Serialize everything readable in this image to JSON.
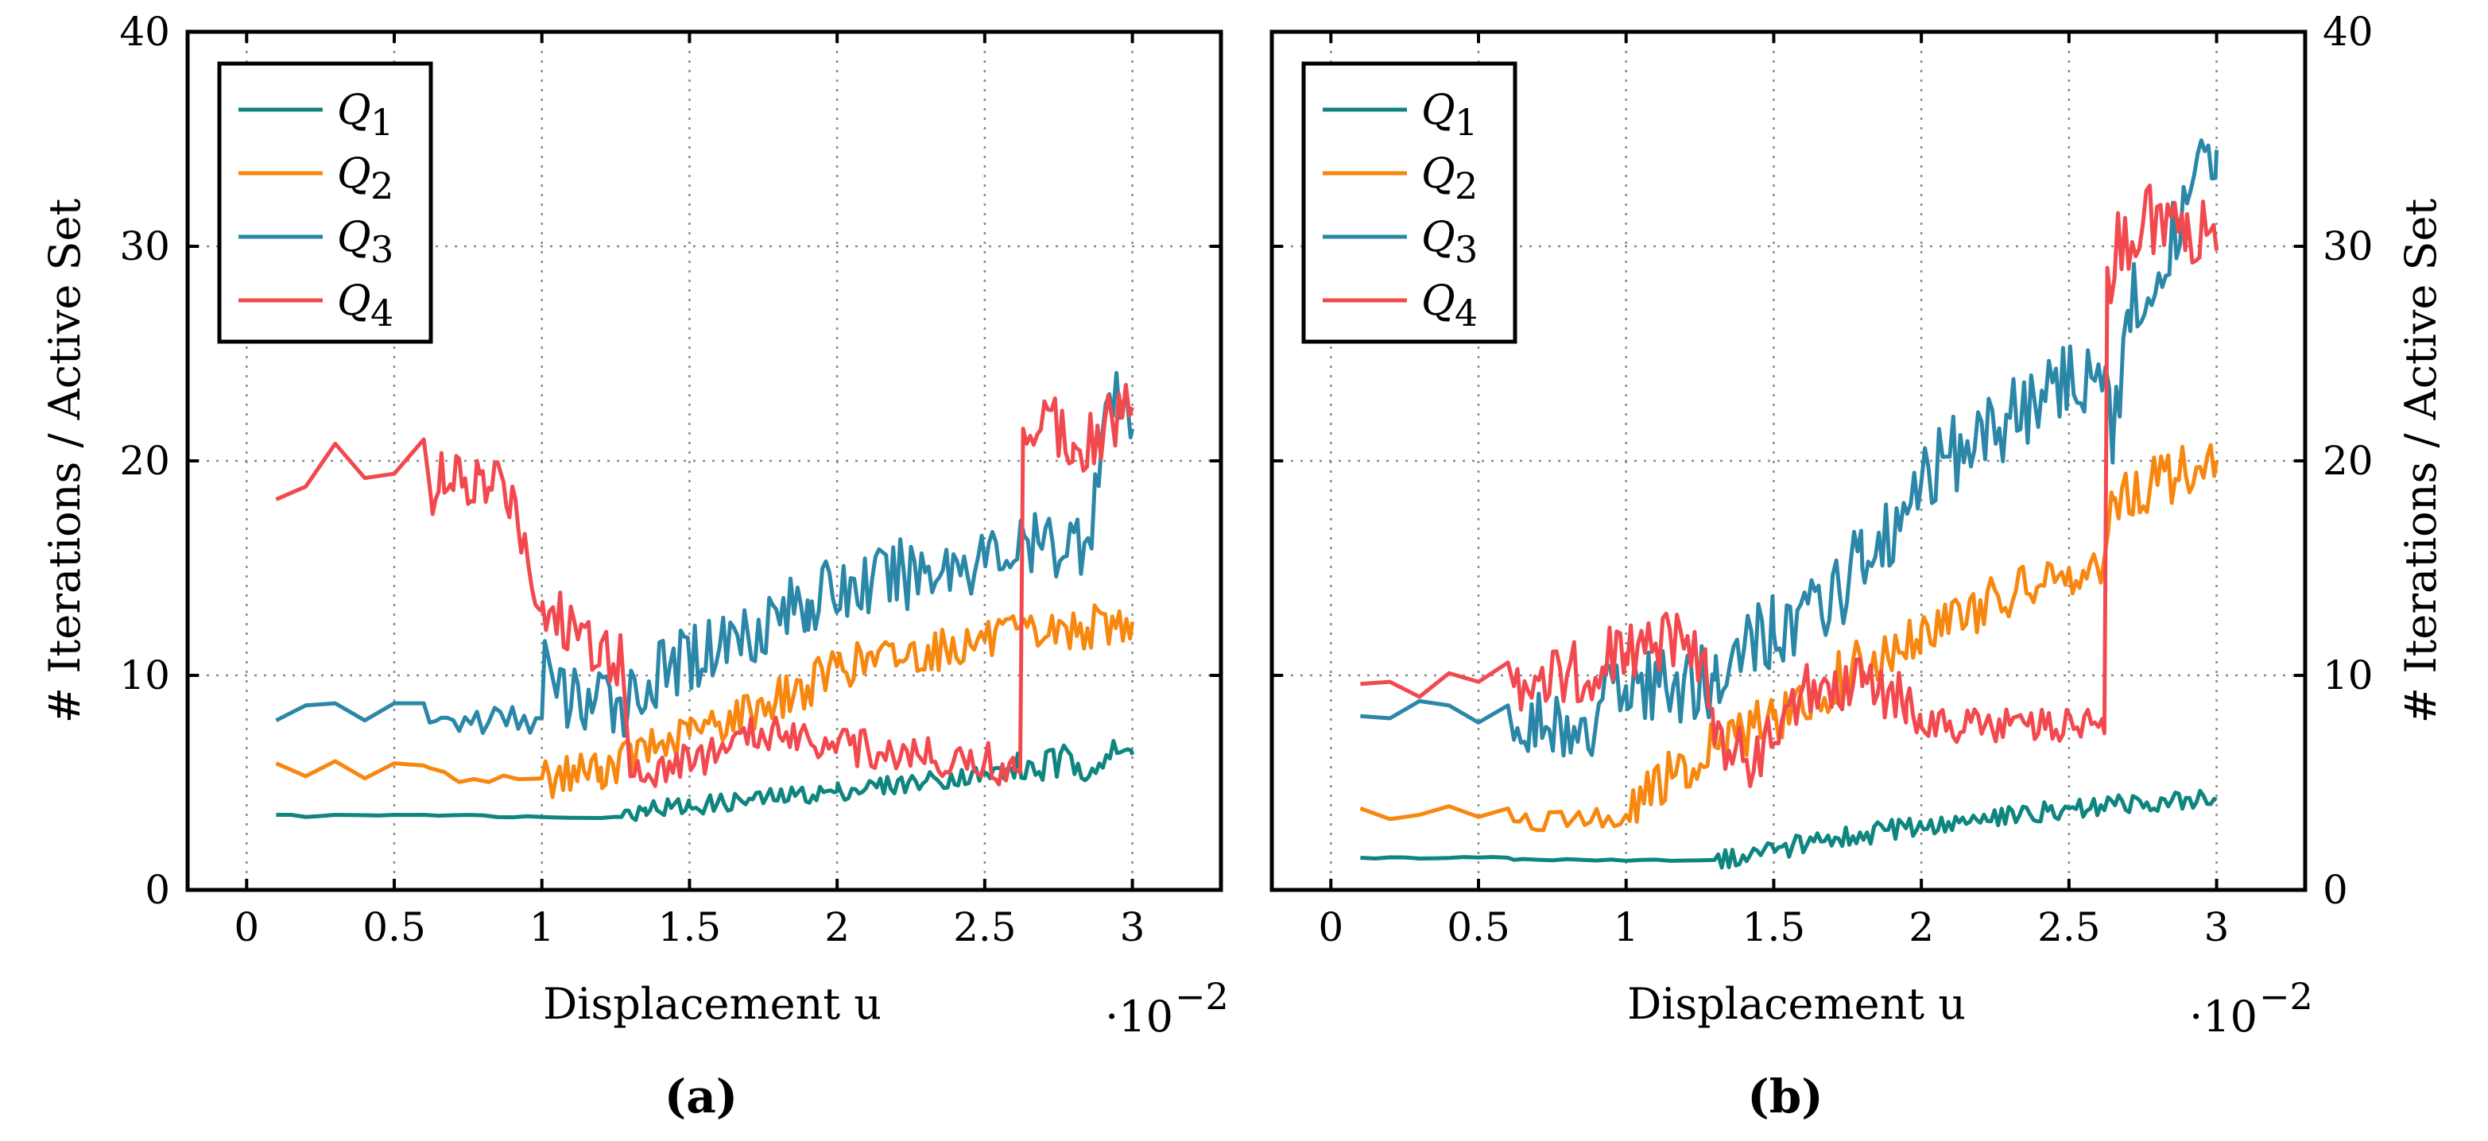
{
  "chart_data": [
    {
      "type": "line",
      "caption": "(a)",
      "xlabel": "Displacement u",
      "x_scale_label": "·10",
      "x_scale_exponent": "−2",
      "ylabel": "# Iterations / Active Set",
      "xlim": [
        -0.2,
        3.3
      ],
      "ylim": [
        0,
        40
      ],
      "xticks": [
        0,
        0.5,
        1,
        1.5,
        2,
        2.5,
        3
      ],
      "xtick_labels": [
        "0",
        "0.5",
        "1",
        "1.5",
        "2",
        "2.5",
        "3"
      ],
      "yticks": [
        0,
        10,
        20,
        30,
        40
      ],
      "ytick_labels": [
        "0",
        "10",
        "20",
        "30",
        "40"
      ],
      "yaxis_side": "left",
      "grid": true,
      "legend_position": "top-left",
      "series": [
        {
          "name": "Q",
          "sub": "1",
          "color": "#0f857f",
          "keypoints": [
            [
              0.1,
              3.5
            ],
            [
              0.2,
              3.4
            ],
            [
              0.3,
              3.5
            ],
            [
              0.5,
              3.5
            ],
            [
              0.6,
              3.5
            ],
            [
              1.0,
              3.4
            ],
            [
              1.27,
              3.4
            ],
            [
              1.35,
              3.8
            ],
            [
              1.5,
              3.9
            ],
            [
              2.0,
              4.6
            ],
            [
              2.5,
              5.4
            ],
            [
              2.62,
              5.6
            ],
            [
              3.0,
              6.3
            ]
          ],
          "noise": [
            {
              "from": 0.1,
              "to": 1.27,
              "step": 0.05,
              "amp": 0.05
            },
            {
              "from": 1.27,
              "to": 2.6,
              "step": 0.012,
              "amp": 0.45
            },
            {
              "from": 2.6,
              "to": 3.0,
              "step": 0.012,
              "amp": 0.9
            }
          ]
        },
        {
          "name": "Q",
          "sub": "2",
          "color": "#f7870f",
          "keypoints": [
            [
              0.1,
              5.9
            ],
            [
              0.2,
              5.3
            ],
            [
              0.3,
              6.0
            ],
            [
              0.4,
              5.2
            ],
            [
              0.5,
              5.9
            ],
            [
              0.6,
              5.8
            ],
            [
              0.7,
              5.2
            ],
            [
              1.0,
              5.2
            ],
            [
              1.2,
              5.7
            ],
            [
              1.5,
              7.2
            ],
            [
              1.9,
              9.5
            ],
            [
              2.0,
              10.4
            ],
            [
              2.5,
              11.6
            ],
            [
              3.0,
              12.5
            ]
          ],
          "noise": [
            {
              "from": 0.1,
              "to": 0.62,
              "step": 0.1,
              "amp": 0
            },
            {
              "from": 0.62,
              "to": 1.0,
              "step": 0.05,
              "amp": 0.2
            },
            {
              "from": 1.0,
              "to": 3.0,
              "step": 0.012,
              "amp": 1.0
            }
          ]
        },
        {
          "name": "Q",
          "sub": "3",
          "color": "#2b87a8",
          "keypoints": [
            [
              0.1,
              7.9
            ],
            [
              0.2,
              8.6
            ],
            [
              0.3,
              8.7
            ],
            [
              0.4,
              7.9
            ],
            [
              0.5,
              8.7
            ],
            [
              0.6,
              8.7
            ],
            [
              0.62,
              7.8
            ],
            [
              1.0,
              8.0
            ],
            [
              1.01,
              11.6
            ],
            [
              1.05,
              9.0
            ],
            [
              1.25,
              8.6
            ],
            [
              1.5,
              10.8
            ],
            [
              1.9,
              13.5
            ],
            [
              2.3,
              15.0
            ],
            [
              2.85,
              16.4
            ],
            [
              2.92,
              23.0
            ],
            [
              3.0,
              21.5
            ]
          ],
          "noise": [
            {
              "from": 0.1,
              "to": 0.62,
              "step": 0.1,
              "amp": 0
            },
            {
              "from": 0.62,
              "to": 1.0,
              "step": 0.02,
              "amp": 0.7
            },
            {
              "from": 1.05,
              "to": 3.0,
              "step": 0.012,
              "amp": 1.7
            }
          ]
        },
        {
          "name": "Q",
          "sub": "4",
          "color": "#f2494f",
          "keypoints": [
            [
              0.1,
              18.2
            ],
            [
              0.2,
              18.8
            ],
            [
              0.3,
              20.8
            ],
            [
              0.4,
              19.2
            ],
            [
              0.5,
              19.4
            ],
            [
              0.6,
              21.0
            ],
            [
              0.62,
              18.8
            ],
            [
              0.9,
              18.8
            ],
            [
              1.0,
              13.0
            ],
            [
              1.2,
              11.5
            ],
            [
              1.27,
              11.0
            ],
            [
              1.3,
              5.3
            ],
            [
              1.5,
              6.0
            ],
            [
              1.8,
              7.6
            ],
            [
              1.9,
              7.2
            ],
            [
              2.0,
              6.7
            ],
            [
              2.5,
              6.0
            ],
            [
              2.6,
              5.6
            ],
            [
              2.62,
              5.5
            ],
            [
              2.63,
              21.5
            ],
            [
              2.7,
              22.5
            ],
            [
              2.8,
              20.8
            ],
            [
              3.0,
              22.5
            ]
          ],
          "noise": [
            {
              "from": 0.1,
              "to": 0.62,
              "step": 0.1,
              "amp": 0
            },
            {
              "from": 0.62,
              "to": 0.93,
              "step": 0.01,
              "amp": 1.7
            },
            {
              "from": 0.93,
              "to": 1.27,
              "step": 0.012,
              "amp": 1.6
            },
            {
              "from": 1.3,
              "to": 2.6,
              "step": 0.012,
              "amp": 0.9
            },
            {
              "from": 2.63,
              "to": 3.0,
              "step": 0.012,
              "amp": 1.6
            }
          ]
        }
      ]
    },
    {
      "type": "line",
      "caption": "(b)",
      "xlabel": "Displacement u",
      "x_scale_label": "·10",
      "x_scale_exponent": "−2",
      "ylabel": "# Iterations / Active Set",
      "xlim": [
        -0.2,
        3.3
      ],
      "ylim": [
        0,
        40
      ],
      "xticks": [
        0,
        0.5,
        1,
        1.5,
        2,
        2.5,
        3
      ],
      "xtick_labels": [
        "0",
        "0.5",
        "1",
        "1.5",
        "2",
        "2.5",
        "3"
      ],
      "yticks": [
        0,
        10,
        20,
        30,
        40
      ],
      "ytick_labels": [
        "0",
        "10",
        "20",
        "30",
        "40"
      ],
      "yaxis_side": "right",
      "grid": true,
      "legend_position": "top-left",
      "series": [
        {
          "name": "Q",
          "sub": "1",
          "color": "#0f857f",
          "keypoints": [
            [
              0.1,
              1.5
            ],
            [
              0.6,
              1.5
            ],
            [
              0.62,
              1.4
            ],
            [
              1.3,
              1.4
            ],
            [
              1.5,
              1.9
            ],
            [
              2.0,
              3.0
            ],
            [
              2.5,
              3.8
            ],
            [
              3.0,
              4.2
            ]
          ],
          "noise": [
            {
              "from": 0.1,
              "to": 1.3,
              "step": 0.05,
              "amp": 0.05
            },
            {
              "from": 1.3,
              "to": 3.0,
              "step": 0.012,
              "amp": 0.5
            }
          ]
        },
        {
          "name": "Q",
          "sub": "2",
          "color": "#f7870f",
          "keypoints": [
            [
              0.1,
              3.8
            ],
            [
              0.2,
              3.3
            ],
            [
              0.3,
              3.5
            ],
            [
              0.4,
              3.9
            ],
            [
              0.5,
              3.4
            ],
            [
              0.6,
              3.8
            ],
            [
              0.62,
              3.2
            ],
            [
              1.0,
              3.5
            ],
            [
              1.2,
              5.8
            ],
            [
              1.5,
              8.0
            ],
            [
              2.0,
              12.2
            ],
            [
              2.5,
              15.0
            ],
            [
              2.62,
              15.5
            ],
            [
              2.65,
              18.2
            ],
            [
              3.0,
              20.0
            ]
          ],
          "noise": [
            {
              "from": 0.1,
              "to": 0.62,
              "step": 0.1,
              "amp": 0
            },
            {
              "from": 0.62,
              "to": 1.0,
              "step": 0.02,
              "amp": 0.5
            },
            {
              "from": 1.0,
              "to": 3.0,
              "step": 0.012,
              "amp": 1.3
            }
          ]
        },
        {
          "name": "Q",
          "sub": "3",
          "color": "#2b87a8",
          "keypoints": [
            [
              0.1,
              8.1
            ],
            [
              0.2,
              8.0
            ],
            [
              0.3,
              8.8
            ],
            [
              0.4,
              8.6
            ],
            [
              0.5,
              7.8
            ],
            [
              0.6,
              8.6
            ],
            [
              0.62,
              7.0
            ],
            [
              0.9,
              8.0
            ],
            [
              1.0,
              9.5
            ],
            [
              1.3,
              9.8
            ],
            [
              1.5,
              12.0
            ],
            [
              1.8,
              15.0
            ],
            [
              2.0,
              19.0
            ],
            [
              2.3,
              22.0
            ],
            [
              2.6,
              24.5
            ],
            [
              2.65,
              21.0
            ],
            [
              2.7,
              27.0
            ],
            [
              2.9,
              32.0
            ],
            [
              3.0,
              34.5
            ]
          ],
          "noise": [
            {
              "from": 0.1,
              "to": 0.62,
              "step": 0.1,
              "amp": 0
            },
            {
              "from": 0.62,
              "to": 3.0,
              "step": 0.012,
              "amp": 2.0
            }
          ]
        },
        {
          "name": "Q",
          "sub": "4",
          "color": "#f2494f",
          "keypoints": [
            [
              0.1,
              9.6
            ],
            [
              0.2,
              9.7
            ],
            [
              0.3,
              9.0
            ],
            [
              0.4,
              10.1
            ],
            [
              0.5,
              9.7
            ],
            [
              0.6,
              10.6
            ],
            [
              0.62,
              9.5
            ],
            [
              0.8,
              10.0
            ],
            [
              1.0,
              11.0
            ],
            [
              1.2,
              11.5
            ],
            [
              1.27,
              10.5
            ],
            [
              1.3,
              6.8
            ],
            [
              1.45,
              6.0
            ],
            [
              1.6,
              9.5
            ],
            [
              1.8,
              9.5
            ],
            [
              1.95,
              8.8
            ],
            [
              2.0,
              7.6
            ],
            [
              2.3,
              7.7
            ],
            [
              2.6,
              7.6
            ],
            [
              2.62,
              7.3
            ],
            [
              2.63,
              29.0
            ],
            [
              2.75,
              31.0
            ],
            [
              2.9,
              31.5
            ],
            [
              3.0,
              29.8
            ]
          ],
          "noise": [
            {
              "from": 0.1,
              "to": 0.62,
              "step": 0.1,
              "amp": 0
            },
            {
              "from": 0.62,
              "to": 1.3,
              "step": 0.012,
              "amp": 1.6
            },
            {
              "from": 1.3,
              "to": 2.0,
              "step": 0.012,
              "amp": 1.4
            },
            {
              "from": 2.0,
              "to": 2.62,
              "step": 0.012,
              "amp": 0.8
            },
            {
              "from": 2.63,
              "to": 3.0,
              "step": 0.012,
              "amp": 2.0
            }
          ]
        }
      ]
    }
  ]
}
